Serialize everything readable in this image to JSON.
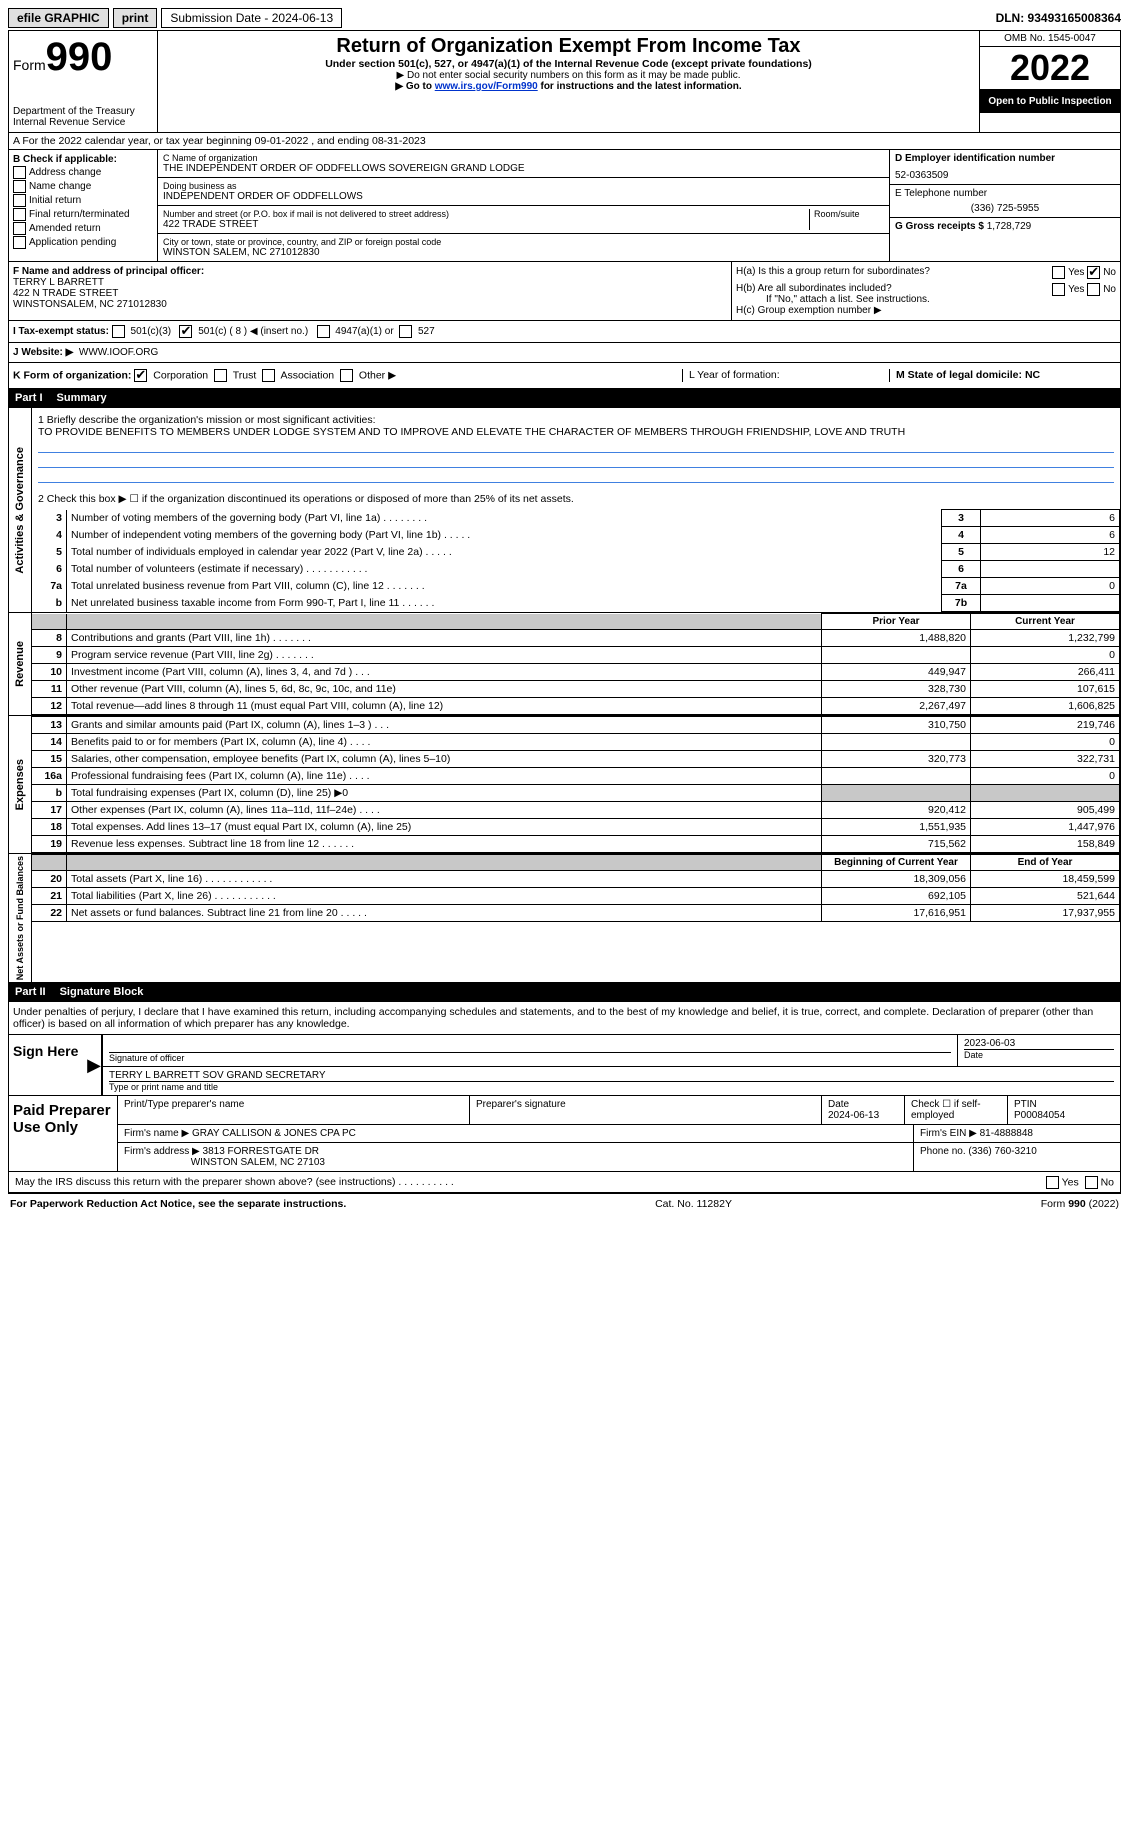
{
  "topbar": {
    "efile": "efile GRAPHIC",
    "print": "print",
    "sub_label": "Submission Date - 2024-06-13",
    "dln_label": "DLN: 93493165008364"
  },
  "header": {
    "form_prefix": "Form",
    "form_number": "990",
    "title": "Return of Organization Exempt From Income Tax",
    "under": "Under section 501(c), 527, or 4947(a)(1) of the Internal Revenue Code (except private foundations)",
    "ssn": "▶ Do not enter social security numbers on this form as it may be made public.",
    "goto_pre": "▶ Go to ",
    "goto_link": "www.irs.gov/Form990",
    "goto_post": " for instructions and the latest information.",
    "dept": "Department of the Treasury",
    "irs": "Internal Revenue Service",
    "omb": "OMB No. 1545-0047",
    "year": "2022",
    "open": "Open to Public Inspection"
  },
  "row_a": "A For the 2022 calendar year, or tax year beginning 09-01-2022   , and ending 08-31-2023",
  "col_b": {
    "lead": "B Check if applicable:",
    "items": [
      "Address change",
      "Name change",
      "Initial return",
      "Final return/terminated",
      "Amended return",
      "Application pending"
    ]
  },
  "col_c": {
    "name_label": "C Name of organization",
    "name": "THE INDEPENDENT ORDER OF ODDFELLOWS SOVEREIGN GRAND LODGE",
    "dba_label": "Doing business as",
    "dba": "INDEPENDENT ORDER OF ODDFELLOWS",
    "addr_label": "Number and street (or P.O. box if mail is not delivered to street address)",
    "room_label": "Room/suite",
    "addr": "422 TRADE STREET",
    "city_label": "City or town, state or province, country, and ZIP or foreign postal code",
    "city": "WINSTON SALEM, NC  271012830"
  },
  "col_d": {
    "ein_label": "D Employer identification number",
    "ein": "52-0363509",
    "tel_label": "E Telephone number",
    "tel": "(336) 725-5955",
    "gross_label": "G Gross receipts $",
    "gross": "1,728,729"
  },
  "f": {
    "label": "F Name and address of principal officer:",
    "name": "TERRY L BARRETT",
    "addr": "422 N TRADE STREET",
    "city": "WINSTONSALEM, NC  271012830"
  },
  "h": {
    "ha": "H(a)  Is this a group return for subordinates?",
    "hb": "H(b)  Are all subordinates included?",
    "hb_note": "If \"No,\" attach a list. See instructions.",
    "hc": "H(c)  Group exemption number ▶",
    "yes": "Yes",
    "no": "No"
  },
  "i": {
    "label": "I    Tax-exempt status:",
    "opt1": "501(c)(3)",
    "opt2": "501(c) ( 8 ) ◀ (insert no.)",
    "opt3": "4947(a)(1) or",
    "opt4": "527"
  },
  "j": {
    "label": "J   Website: ▶",
    "val": "WWW.IOOF.ORG"
  },
  "k": {
    "label": "K Form of organization:",
    "opts": [
      "Corporation",
      "Trust",
      "Association",
      "Other ▶"
    ],
    "l_label": "L Year of formation:",
    "m_label": "M State of legal domicile: NC"
  },
  "part1": {
    "num": "Part I",
    "title": "Summary"
  },
  "vert": {
    "act": "Activities & Governance",
    "rev": "Revenue",
    "exp": "Expenses",
    "net": "Net Assets or Fund Balances"
  },
  "mission": {
    "q": "1   Briefly describe the organization's mission or most significant activities:",
    "val": "TO PROVIDE BENEFITS TO MEMBERS UNDER LODGE SYSTEM AND TO IMPROVE AND ELEVATE THE CHARACTER OF MEMBERS THROUGH FRIENDSHIP, LOVE AND TRUTH"
  },
  "line2": "2    Check this box ▶ ☐  if the organization discontinued its operations or disposed of more than 25% of its net assets.",
  "gov_lines": [
    {
      "n": "3",
      "label": "Number of voting members of the governing body (Part VI, line 1a)   .    .    .    .    .    .    .    .",
      "box": "3",
      "val": "6"
    },
    {
      "n": "4",
      "label": "Number of independent voting members of the governing body (Part VI, line 1b)   .    .    .    .    .",
      "box": "4",
      "val": "6"
    },
    {
      "n": "5",
      "label": "Total number of individuals employed in calendar year 2022 (Part V, line 2a)   .    .    .    .    .",
      "box": "5",
      "val": "12"
    },
    {
      "n": "6",
      "label": "Total number of volunteers (estimate if necessary)   .    .    .    .    .    .    .    .    .    .    .",
      "box": "6",
      "val": ""
    },
    {
      "n": "7a",
      "label": "Total unrelated business revenue from Part VIII, column (C), line 12   .    .    .    .    .    .    .",
      "box": "7a",
      "val": "0"
    },
    {
      "n": "b",
      "label": "Net unrelated business taxable income from Form 990-T, Part I, line 11   .    .    .    .    .    .",
      "box": "7b",
      "val": ""
    }
  ],
  "col_headers": {
    "py": "Prior Year",
    "cy": "Current Year",
    "boy": "Beginning of Current Year",
    "eoy": "End of Year"
  },
  "rev_lines": [
    {
      "n": "8",
      "label": "Contributions and grants (Part VIII, line 1h)   .    .    .    .    .    .    .",
      "py": "1,488,820",
      "cy": "1,232,799"
    },
    {
      "n": "9",
      "label": "Program service revenue (Part VIII, line 2g)   .    .    .    .    .    .    .",
      "py": "",
      "cy": "0"
    },
    {
      "n": "10",
      "label": "Investment income (Part VIII, column (A), lines 3, 4, and 7d )   .    .    .",
      "py": "449,947",
      "cy": "266,411"
    },
    {
      "n": "11",
      "label": "Other revenue (Part VIII, column (A), lines 5, 6d, 8c, 9c, 10c, and 11e)",
      "py": "328,730",
      "cy": "107,615"
    },
    {
      "n": "12",
      "label": "Total revenue—add lines 8 through 11 (must equal Part VIII, column (A), line 12)",
      "py": "2,267,497",
      "cy": "1,606,825"
    }
  ],
  "exp_lines": [
    {
      "n": "13",
      "label": "Grants and similar amounts paid (Part IX, column (A), lines 1–3 )  .    .    .",
      "py": "310,750",
      "cy": "219,746"
    },
    {
      "n": "14",
      "label": "Benefits paid to or for members (Part IX, column (A), line 4)   .    .    .    .",
      "py": "",
      "cy": "0"
    },
    {
      "n": "15",
      "label": "Salaries, other compensation, employee benefits (Part IX, column (A), lines 5–10)",
      "py": "320,773",
      "cy": "322,731"
    },
    {
      "n": "16a",
      "label": "Professional fundraising fees (Part IX, column (A), line 11e)   .    .    .    .",
      "py": "",
      "cy": "0"
    },
    {
      "n": "b",
      "label": "Total fundraising expenses (Part IX, column (D), line 25) ▶0",
      "py": "grey",
      "cy": "grey"
    },
    {
      "n": "17",
      "label": "Other expenses (Part IX, column (A), lines 11a–11d, 11f–24e)   .    .    .    .",
      "py": "920,412",
      "cy": "905,499"
    },
    {
      "n": "18",
      "label": "Total expenses. Add lines 13–17 (must equal Part IX, column (A), line 25)",
      "py": "1,551,935",
      "cy": "1,447,976"
    },
    {
      "n": "19",
      "label": "Revenue less expenses. Subtract line 18 from line 12  .    .    .    .    .    .",
      "py": "715,562",
      "cy": "158,849"
    }
  ],
  "net_lines": [
    {
      "n": "20",
      "label": "Total assets (Part X, line 16)  .    .    .    .    .    .    .    .    .    .    .    .",
      "py": "18,309,056",
      "cy": "18,459,599"
    },
    {
      "n": "21",
      "label": "Total liabilities (Part X, line 26)  .    .    .    .    .    .    .    .    .    .    .",
      "py": "692,105",
      "cy": "521,644"
    },
    {
      "n": "22",
      "label": "Net assets or fund balances. Subtract line 21 from line 20  .    .    .    .    .",
      "py": "17,616,951",
      "cy": "17,937,955"
    }
  ],
  "part2": {
    "num": "Part II",
    "title": "Signature Block"
  },
  "penalties": "Under penalties of perjury, I declare that I have examined this return, including accompanying schedules and statements, and to the best of my knowledge and belief, it is true, correct, and complete. Declaration of preparer (other than officer) is based on all information of which preparer has any knowledge.",
  "sign": {
    "here": "Sign Here",
    "sig_officer": "Signature of officer",
    "date": "Date",
    "date_val": "2023-06-03",
    "name_val": "TERRY L BARRETT  SOV GRAND SECRETARY",
    "type_name": "Type or print name and title"
  },
  "paid": {
    "label": "Paid Preparer Use Only",
    "h1": "Print/Type preparer's name",
    "h2": "Preparer's signature",
    "h3": "Date",
    "h3_val": "2024-06-13",
    "h4": "Check ☐ if self-employed",
    "h5": "PTIN",
    "h5_val": "P00084054",
    "firm_name_l": "Firm's name    ▶",
    "firm_name": "GRAY CALLISON & JONES CPA PC",
    "firm_ein_l": "Firm's EIN ▶",
    "firm_ein": "81-4888848",
    "firm_addr_l": "Firm's address ▶",
    "firm_addr1": "3813 FORRESTGATE DR",
    "firm_addr2": "WINSTON SALEM, NC  27103",
    "phone_l": "Phone no.",
    "phone": "(336) 760-3210"
  },
  "discuss": "May the IRS discuss this return with the preparer shown above? (see instructions)   .    .    .    .    .    .    .    .    .    .",
  "footer": {
    "left": "For Paperwork Reduction Act Notice, see the separate instructions.",
    "mid": "Cat. No. 11282Y",
    "right": "Form 990 (2022)"
  }
}
